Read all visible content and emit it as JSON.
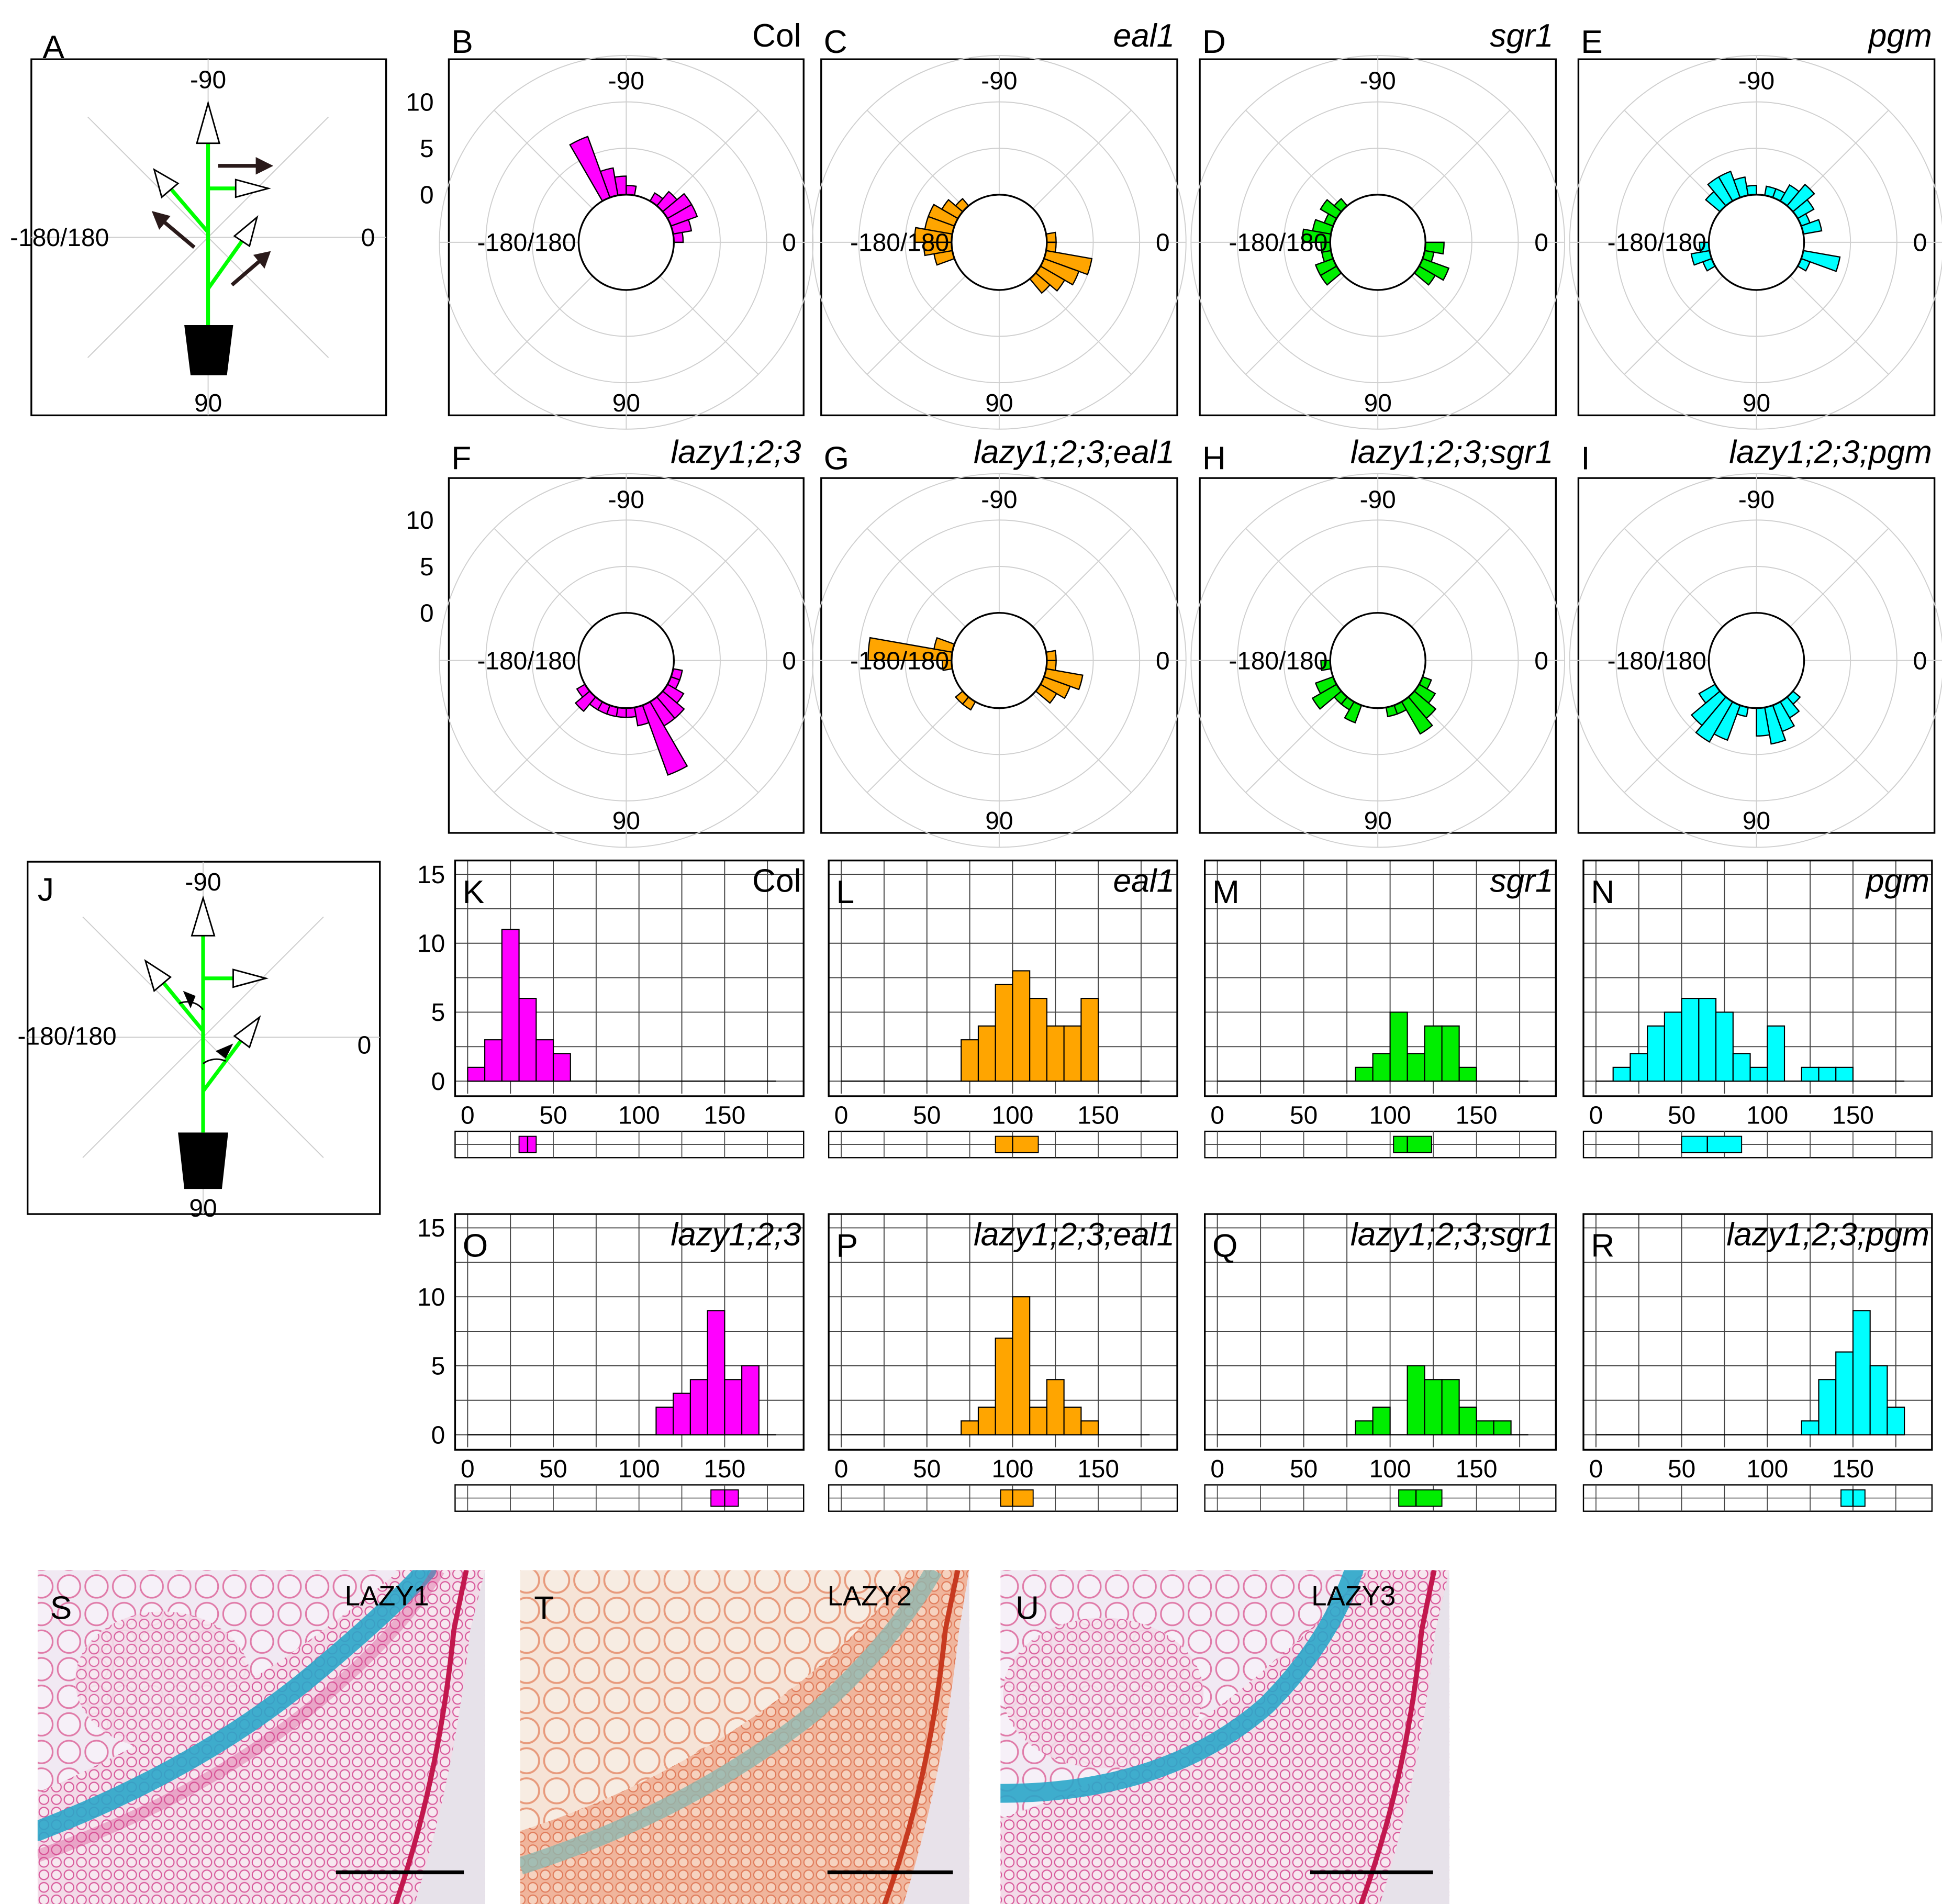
{
  "chart_data": {
    "type": "figure",
    "colors": {
      "magenta": "#ff00ff",
      "orange": "#ffa500",
      "green": "#00ee00",
      "cyan": "#00ffff",
      "stem": "#00ff00",
      "arrow_dark": "#2a1a1a"
    },
    "diagrams": [
      {
        "panel": "A",
        "top_label": "-90",
        "bottom_label": "90",
        "left_label": "-180/180",
        "right_label": "0"
      },
      {
        "panel": "J",
        "top_label": "-90",
        "bottom_label": "90",
        "left_label": "-180/180",
        "right_label": "0"
      }
    ],
    "polar_bin_angles_deg": [
      -180,
      -170,
      -160,
      -150,
      -140,
      -130,
      -120,
      -110,
      -100,
      -90,
      -80,
      -70,
      -60,
      -50,
      -40,
      -30,
      -20,
      -10,
      0,
      10,
      20,
      30,
      40,
      50,
      60,
      70,
      80,
      90,
      100,
      110,
      120,
      130,
      140,
      150,
      160,
      170
    ],
    "polar": {
      "type": "polar_histogram",
      "rlabels": [
        "10",
        "5",
        "0"
      ],
      "angle_labels": {
        "top": "-90",
        "bottom": "90",
        "left": "-180/180",
        "right": "0"
      },
      "panels": [
        {
          "panel": "B",
          "genotype": "Col",
          "italic": false,
          "color": "magenta",
          "counts": [
            0,
            0,
            0,
            0,
            0,
            0,
            7,
            3,
            2,
            1,
            0,
            0,
            1,
            2,
            3,
            3,
            2,
            1,
            0,
            0,
            0,
            0,
            0,
            0,
            0,
            0,
            0,
            0,
            0,
            0,
            0,
            0,
            0,
            0,
            0,
            0
          ]
        },
        {
          "panel": "C",
          "genotype": "eal1",
          "italic": true,
          "color": "orange",
          "counts": [
            4,
            3,
            3,
            2,
            1,
            0,
            0,
            0,
            0,
            0,
            0,
            0,
            0,
            0,
            0,
            0,
            0,
            1,
            1,
            5,
            4,
            3,
            2,
            0,
            0,
            0,
            0,
            0,
            0,
            0,
            0,
            0,
            0,
            0,
            2,
            3
          ]
        },
        {
          "panel": "D",
          "genotype": "sgr1",
          "italic": true,
          "color": "green",
          "counts": [
            3,
            2,
            1,
            2,
            1,
            0,
            0,
            0,
            0,
            0,
            0,
            0,
            0,
            0,
            0,
            0,
            0,
            0,
            2,
            1,
            3,
            2,
            0,
            0,
            0,
            0,
            0,
            0,
            0,
            0,
            0,
            0,
            2,
            2,
            1,
            1
          ]
        },
        {
          "panel": "E",
          "genotype": "pgm",
          "italic": true,
          "color": "cyan",
          "counts": [
            0,
            0,
            0,
            0,
            2,
            3,
            3,
            2,
            1,
            0,
            1,
            1,
            2,
            3,
            2,
            1,
            2,
            0,
            0,
            4,
            1,
            0,
            0,
            0,
            0,
            0,
            0,
            0,
            0,
            0,
            0,
            0,
            0,
            1,
            2,
            1
          ]
        },
        {
          "panel": "F",
          "genotype": "lazy1;2;3",
          "italic": true,
          "color": "magenta",
          "counts": [
            0,
            0,
            0,
            0,
            0,
            0,
            0,
            0,
            0,
            0,
            0,
            0,
            0,
            0,
            0,
            0,
            0,
            0,
            0,
            1,
            1,
            2,
            3,
            3,
            8,
            2,
            1,
            1,
            1,
            1,
            1,
            2,
            1,
            0,
            0,
            0
          ]
        },
        {
          "panel": "G",
          "genotype": "lazy1;2;3;eal1",
          "italic": true,
          "color": "orange",
          "counts": [
            9,
            2,
            0,
            0,
            0,
            0,
            0,
            0,
            0,
            0,
            0,
            0,
            0,
            0,
            0,
            0,
            0,
            1,
            1,
            4,
            3,
            2,
            0,
            0,
            0,
            0,
            0,
            0,
            0,
            0,
            1,
            1,
            0,
            0,
            0,
            1
          ]
        },
        {
          "panel": "H",
          "genotype": "lazy1;2;3;sgr1",
          "italic": true,
          "color": "green",
          "counts": [
            0,
            0,
            0,
            0,
            0,
            0,
            0,
            0,
            0,
            0,
            0,
            0,
            0,
            0,
            0,
            0,
            0,
            0,
            0,
            0,
            1,
            2,
            3,
            4,
            1,
            1,
            0,
            0,
            0,
            2,
            1,
            1,
            3,
            2,
            0,
            1
          ]
        },
        {
          "panel": "I",
          "genotype": "lazy1;2;3;pgm",
          "italic": true,
          "color": "cyan",
          "counts": [
            0,
            0,
            0,
            0,
            0,
            0,
            0,
            0,
            0,
            0,
            0,
            0,
            0,
            0,
            0,
            0,
            0,
            0,
            0,
            0,
            0,
            0,
            1,
            2,
            3,
            4,
            3,
            0,
            1,
            4,
            5,
            4,
            2,
            0,
            0,
            0
          ]
        }
      ]
    },
    "hist": {
      "type": "bar",
      "bins": [
        0,
        10,
        20,
        30,
        40,
        50,
        60,
        70,
        80,
        90,
        100,
        110,
        120,
        130,
        140,
        150,
        160,
        170
      ],
      "bin_width": 10,
      "xlim": [
        0,
        180
      ],
      "ylim": [
        0,
        15
      ],
      "xticks": [
        "0",
        "50",
        "100",
        "150"
      ],
      "yticks": [
        "15",
        "10",
        "5",
        "0"
      ],
      "panels": [
        {
          "panel": "K",
          "genotype": "Col",
          "italic": false,
          "color": "magenta",
          "counts": [
            1,
            3,
            11,
            6,
            3,
            2,
            0,
            0,
            0,
            0,
            0,
            0,
            0,
            0,
            0,
            0,
            0,
            0
          ],
          "box": {
            "q1": 30,
            "median": 35,
            "q3": 40
          }
        },
        {
          "panel": "L",
          "genotype": "eal1",
          "italic": true,
          "color": "orange",
          "counts": [
            0,
            0,
            0,
            0,
            0,
            0,
            0,
            3,
            4,
            7,
            8,
            6,
            4,
            4,
            6,
            0,
            0,
            0
          ],
          "box": {
            "q1": 90,
            "median": 100,
            "q3": 115
          }
        },
        {
          "panel": "M",
          "genotype": "sgr1",
          "italic": true,
          "color": "green",
          "counts": [
            0,
            0,
            0,
            0,
            0,
            0,
            0,
            0,
            1,
            2,
            5,
            2,
            4,
            4,
            1,
            0,
            0,
            0
          ],
          "box": {
            "q1": 102,
            "median": 110,
            "q3": 124
          }
        },
        {
          "panel": "N",
          "genotype": "pgm",
          "italic": true,
          "color": "cyan",
          "counts": [
            0,
            1,
            2,
            4,
            5,
            6,
            6,
            5,
            2,
            1,
            4,
            0,
            1,
            1,
            1,
            0,
            0,
            0
          ],
          "box": {
            "q1": 50,
            "median": 65,
            "q3": 85
          }
        },
        {
          "panel": "O",
          "genotype": "lazy1;2;3",
          "italic": true,
          "color": "magenta",
          "counts": [
            0,
            0,
            0,
            0,
            0,
            0,
            0,
            0,
            0,
            0,
            0,
            2,
            3,
            4,
            9,
            4,
            5,
            0
          ],
          "box": {
            "q1": 142,
            "median": 150,
            "q3": 158
          }
        },
        {
          "panel": "P",
          "genotype": "lazy1;2;3;eal1",
          "italic": true,
          "color": "orange",
          "counts": [
            0,
            0,
            0,
            0,
            0,
            0,
            0,
            1,
            2,
            7,
            10,
            2,
            4,
            2,
            1,
            0,
            0,
            0
          ],
          "box": {
            "q1": 93,
            "median": 100,
            "q3": 112
          }
        },
        {
          "panel": "Q",
          "genotype": "lazy1;2;3;sgr1",
          "italic": true,
          "color": "green",
          "counts": [
            0,
            0,
            0,
            0,
            0,
            0,
            0,
            0,
            1,
            2,
            0,
            5,
            4,
            4,
            2,
            1,
            1,
            0
          ],
          "box": {
            "q1": 105,
            "median": 115,
            "q3": 130
          }
        },
        {
          "panel": "R",
          "genotype": "lazy1;2;3;pgm",
          "italic": true,
          "color": "cyan",
          "counts": [
            0,
            0,
            0,
            0,
            0,
            0,
            0,
            0,
            0,
            0,
            0,
            0,
            1,
            4,
            6,
            9,
            5,
            2
          ],
          "box": {
            "q1": 143,
            "median": 150,
            "q3": 157
          }
        }
      ]
    },
    "micrographs": [
      {
        "panel": "S",
        "label": "LAZY1"
      },
      {
        "panel": "T",
        "label": "LAZY2"
      },
      {
        "panel": "U",
        "label": "LAZY3"
      }
    ]
  }
}
